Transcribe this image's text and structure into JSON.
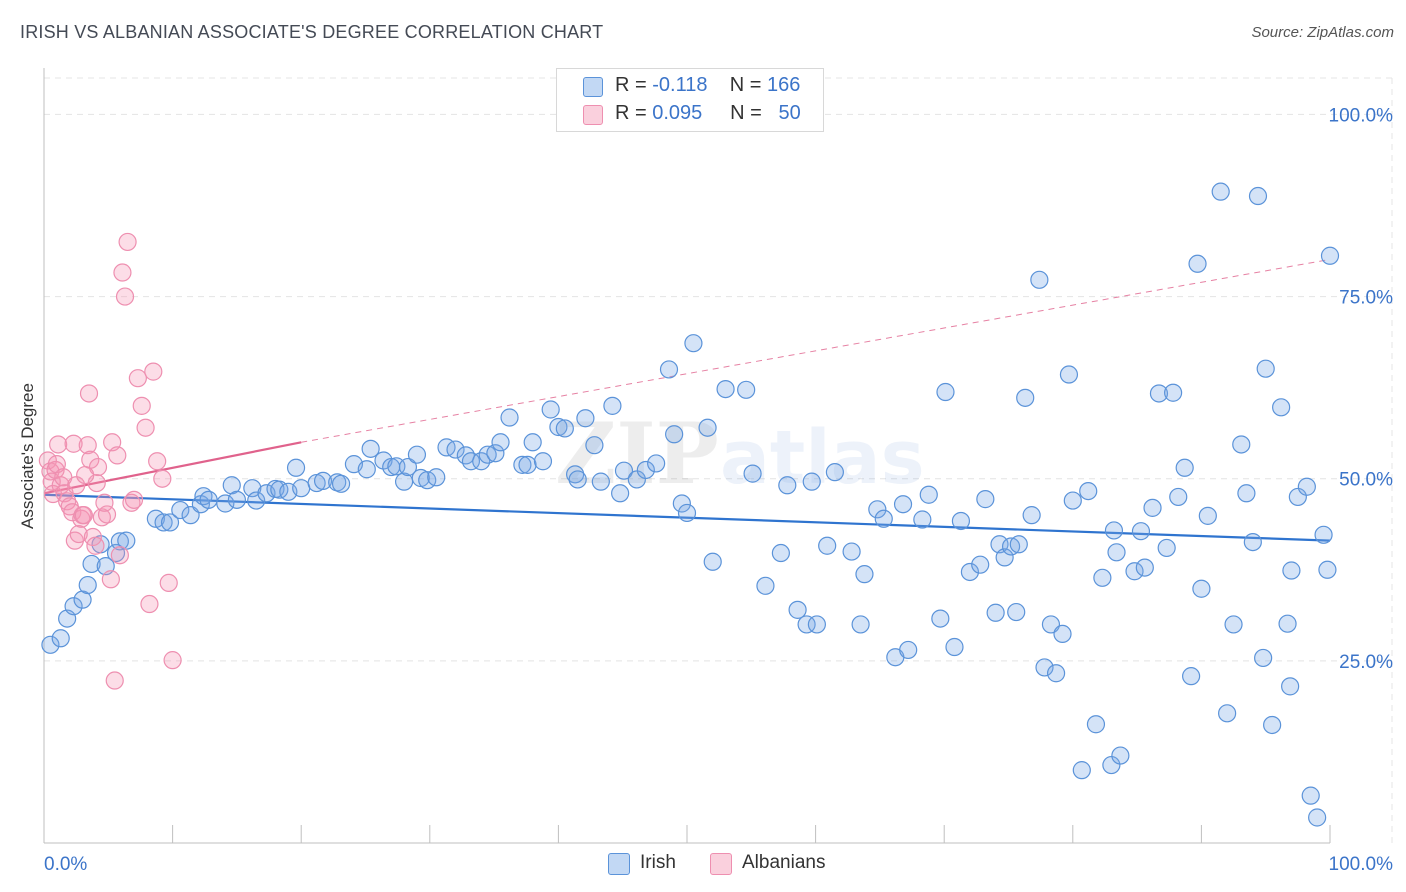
{
  "title": "IRISH VS ALBANIAN ASSOCIATE'S DEGREE CORRELATION CHART",
  "source": "Source: ZipAtlas.com",
  "watermark": {
    "zip": "ZIP",
    "atlas": "atlas"
  },
  "colors": {
    "irish_fill": "rgba(120,168,230,0.32)",
    "irish_stroke": "#5b93d9",
    "irish_line": "#2f74cf",
    "albanian_fill": "rgba(245,150,180,0.32)",
    "albanian_stroke": "#ee8fb0",
    "albanian_line": "#e0628c",
    "axis_label_blue": "#3b74c9",
    "grid": "#e4e4e4"
  },
  "legend": {
    "irish": {
      "r_label": "R =",
      "r_value": "-0.118",
      "n_label": "N =",
      "n_value": "166"
    },
    "albanian": {
      "r_label": "R =",
      "r_value": "0.095",
      "n_label": "N =",
      "n_value": "50"
    }
  },
  "chart_data": {
    "type": "scatter",
    "title": "IRISH VS ALBANIAN ASSOCIATE'S DEGREE CORRELATION CHART",
    "xlabel": "",
    "ylabel": "Associate's Degree",
    "xlim": [
      0,
      100
    ],
    "ylim": [
      0,
      105
    ],
    "x_tick_labels": [
      "0.0%",
      "100.0%"
    ],
    "y_ticks": [
      25,
      50,
      75,
      100
    ],
    "y_tick_labels": [
      "25.0%",
      "50.0%",
      "75.0%",
      "100.0%"
    ],
    "grid": true,
    "legend_position": "top-center",
    "series": [
      {
        "name": "Irish",
        "r": -0.118,
        "n": 166,
        "trend": {
          "x": [
            0,
            100
          ],
          "y": [
            47.8,
            41.5
          ],
          "style": "solid"
        },
        "points": [
          [
            0.5,
            27.2
          ],
          [
            1.3,
            28.1
          ],
          [
            1.8,
            30.8
          ],
          [
            2.3,
            32.5
          ],
          [
            3.0,
            33.4
          ],
          [
            3.4,
            35.4
          ],
          [
            3.7,
            38.3
          ],
          [
            4.4,
            41.0
          ],
          [
            4.8,
            38.0
          ],
          [
            5.6,
            39.8
          ],
          [
            5.9,
            41.4
          ],
          [
            6.4,
            41.5
          ],
          [
            8.7,
            44.5
          ],
          [
            9.3,
            44.0
          ],
          [
            9.8,
            44.0
          ],
          [
            10.6,
            45.7
          ],
          [
            11.4,
            45.0
          ],
          [
            12.2,
            46.5
          ],
          [
            12.4,
            47.6
          ],
          [
            12.8,
            47.1
          ],
          [
            14.1,
            46.6
          ],
          [
            14.6,
            49.1
          ],
          [
            15.0,
            47.1
          ],
          [
            16.2,
            48.7
          ],
          [
            16.5,
            47.0
          ],
          [
            17.3,
            48.0
          ],
          [
            18.0,
            48.6
          ],
          [
            18.3,
            48.5
          ],
          [
            19.0,
            48.2
          ],
          [
            19.6,
            51.5
          ],
          [
            20.0,
            48.7
          ],
          [
            21.2,
            49.4
          ],
          [
            21.7,
            49.7
          ],
          [
            22.8,
            49.5
          ],
          [
            23.1,
            49.3
          ],
          [
            24.1,
            52.0
          ],
          [
            25.1,
            51.3
          ],
          [
            25.4,
            54.1
          ],
          [
            26.4,
            52.5
          ],
          [
            27.0,
            51.6
          ],
          [
            27.4,
            51.7
          ],
          [
            28.0,
            49.6
          ],
          [
            28.3,
            51.6
          ],
          [
            29.0,
            53.3
          ],
          [
            29.3,
            50.1
          ],
          [
            29.8,
            49.8
          ],
          [
            30.5,
            50.2
          ],
          [
            31.3,
            54.3
          ],
          [
            32.0,
            54.0
          ],
          [
            32.8,
            53.2
          ],
          [
            33.2,
            52.4
          ],
          [
            34.0,
            52.4
          ],
          [
            34.5,
            53.3
          ],
          [
            35.1,
            53.5
          ],
          [
            35.5,
            55.0
          ],
          [
            36.2,
            58.4
          ],
          [
            37.2,
            51.9
          ],
          [
            37.6,
            51.9
          ],
          [
            38.0,
            55.0
          ],
          [
            38.8,
            52.4
          ],
          [
            39.4,
            59.5
          ],
          [
            40.0,
            57.1
          ],
          [
            40.5,
            56.9
          ],
          [
            41.3,
            50.6
          ],
          [
            41.5,
            49.9
          ],
          [
            42.1,
            58.3
          ],
          [
            42.8,
            54.6
          ],
          [
            43.3,
            49.6
          ],
          [
            44.2,
            60.0
          ],
          [
            44.8,
            48.0
          ],
          [
            45.1,
            51.1
          ],
          [
            46.1,
            49.9
          ],
          [
            46.8,
            51.2
          ],
          [
            47.6,
            52.1
          ],
          [
            48.6,
            65.0
          ],
          [
            49.0,
            56.1
          ],
          [
            49.6,
            46.6
          ],
          [
            50.0,
            45.3
          ],
          [
            50.5,
            68.6
          ],
          [
            51.6,
            57.0
          ],
          [
            52.0,
            38.6
          ],
          [
            53.0,
            62.3
          ],
          [
            54.6,
            62.2
          ],
          [
            55.1,
            50.7
          ],
          [
            56.1,
            35.3
          ],
          [
            57.3,
            39.8
          ],
          [
            57.8,
            49.1
          ],
          [
            58.6,
            32.0
          ],
          [
            59.3,
            30.0
          ],
          [
            59.7,
            49.6
          ],
          [
            60.1,
            30.0
          ],
          [
            60.9,
            40.8
          ],
          [
            61.5,
            50.9
          ],
          [
            62.8,
            40.0
          ],
          [
            63.5,
            30.0
          ],
          [
            63.8,
            36.9
          ],
          [
            64.8,
            45.8
          ],
          [
            65.3,
            44.5
          ],
          [
            66.2,
            25.5
          ],
          [
            66.8,
            46.5
          ],
          [
            67.2,
            26.5
          ],
          [
            68.3,
            44.4
          ],
          [
            68.8,
            47.8
          ],
          [
            69.7,
            30.8
          ],
          [
            70.1,
            61.9
          ],
          [
            70.8,
            26.9
          ],
          [
            71.3,
            44.2
          ],
          [
            72.0,
            37.2
          ],
          [
            72.8,
            38.2
          ],
          [
            73.2,
            47.2
          ],
          [
            74.0,
            31.6
          ],
          [
            74.3,
            41.0
          ],
          [
            74.7,
            39.2
          ],
          [
            75.2,
            40.7
          ],
          [
            75.6,
            31.7
          ],
          [
            76.3,
            61.1
          ],
          [
            76.8,
            45.0
          ],
          [
            77.4,
            77.3
          ],
          [
            77.8,
            24.1
          ],
          [
            78.3,
            30.0
          ],
          [
            78.7,
            23.3
          ],
          [
            79.2,
            28.7
          ],
          [
            79.7,
            64.3
          ],
          [
            80.0,
            47.0
          ],
          [
            80.7,
            10.0
          ],
          [
            81.2,
            48.3
          ],
          [
            81.8,
            16.3
          ],
          [
            82.3,
            36.4
          ],
          [
            83.0,
            10.7
          ],
          [
            83.4,
            39.9
          ],
          [
            83.7,
            12.0
          ],
          [
            84.8,
            37.3
          ],
          [
            85.3,
            42.8
          ],
          [
            85.6,
            37.8
          ],
          [
            86.2,
            46.0
          ],
          [
            86.7,
            61.7
          ],
          [
            87.3,
            40.5
          ],
          [
            87.8,
            61.8
          ],
          [
            88.2,
            47.5
          ],
          [
            88.7,
            51.5
          ],
          [
            89.2,
            22.9
          ],
          [
            89.7,
            79.5
          ],
          [
            90.5,
            44.9
          ],
          [
            91.5,
            89.4
          ],
          [
            92.0,
            17.8
          ],
          [
            92.5,
            30.0
          ],
          [
            93.1,
            54.7
          ],
          [
            93.5,
            48.0
          ],
          [
            94.0,
            41.3
          ],
          [
            94.4,
            88.8
          ],
          [
            95.0,
            65.1
          ],
          [
            95.5,
            16.2
          ],
          [
            96.2,
            59.8
          ],
          [
            96.9,
            21.5
          ],
          [
            97.5,
            47.5
          ],
          [
            98.2,
            48.9
          ],
          [
            99.0,
            3.5
          ],
          [
            99.5,
            42.3
          ],
          [
            99.8,
            37.5
          ],
          [
            100.0,
            80.6
          ],
          [
            75.8,
            41.0
          ],
          [
            83.2,
            42.9
          ],
          [
            90.0,
            34.9
          ],
          [
            94.8,
            25.4
          ],
          [
            97.0,
            37.4
          ],
          [
            98.5,
            6.5
          ],
          [
            96.7,
            30.1
          ]
        ]
      },
      {
        "name": "Albanians",
        "r": 0.095,
        "n": 50,
        "trend": {
          "x": [
            0,
            20
          ],
          "y": [
            48.0,
            55.0
          ],
          "style": "solid",
          "extension": {
            "x": [
              20,
              100
            ],
            "y": [
              55.0,
              80.1
            ],
            "style": "dashed"
          }
        },
        "points": [
          [
            0.3,
            52.5
          ],
          [
            0.5,
            51.0
          ],
          [
            0.6,
            49.6
          ],
          [
            0.7,
            47.9
          ],
          [
            0.9,
            51.2
          ],
          [
            1.0,
            52.0
          ],
          [
            1.1,
            54.7
          ],
          [
            1.3,
            49.1
          ],
          [
            1.5,
            50.2
          ],
          [
            1.6,
            48.0
          ],
          [
            1.8,
            46.9
          ],
          [
            2.0,
            46.2
          ],
          [
            2.2,
            45.4
          ],
          [
            2.3,
            54.8
          ],
          [
            2.4,
            41.5
          ],
          [
            2.7,
            42.4
          ],
          [
            2.9,
            44.5
          ],
          [
            3.0,
            45.0
          ],
          [
            3.1,
            45.0
          ],
          [
            3.4,
            54.6
          ],
          [
            3.5,
            61.7
          ],
          [
            3.6,
            52.6
          ],
          [
            3.8,
            42.0
          ],
          [
            4.0,
            40.8
          ],
          [
            4.1,
            49.4
          ],
          [
            4.2,
            51.6
          ],
          [
            4.5,
            44.7
          ],
          [
            4.9,
            45.1
          ],
          [
            5.2,
            36.2
          ],
          [
            5.3,
            55.0
          ],
          [
            5.5,
            22.3
          ],
          [
            5.7,
            53.2
          ],
          [
            5.9,
            39.5
          ],
          [
            6.1,
            78.3
          ],
          [
            6.3,
            75.0
          ],
          [
            6.5,
            82.5
          ],
          [
            6.8,
            46.7
          ],
          [
            7.0,
            47.1
          ],
          [
            7.3,
            63.8
          ],
          [
            7.6,
            60.0
          ],
          [
            7.9,
            57.0
          ],
          [
            8.2,
            32.8
          ],
          [
            8.5,
            64.7
          ],
          [
            8.8,
            52.4
          ],
          [
            9.2,
            50.0
          ],
          [
            9.7,
            35.7
          ],
          [
            10.0,
            25.1
          ],
          [
            2.5,
            49.1
          ],
          [
            3.2,
            50.5
          ],
          [
            4.7,
            46.7
          ]
        ]
      }
    ]
  }
}
